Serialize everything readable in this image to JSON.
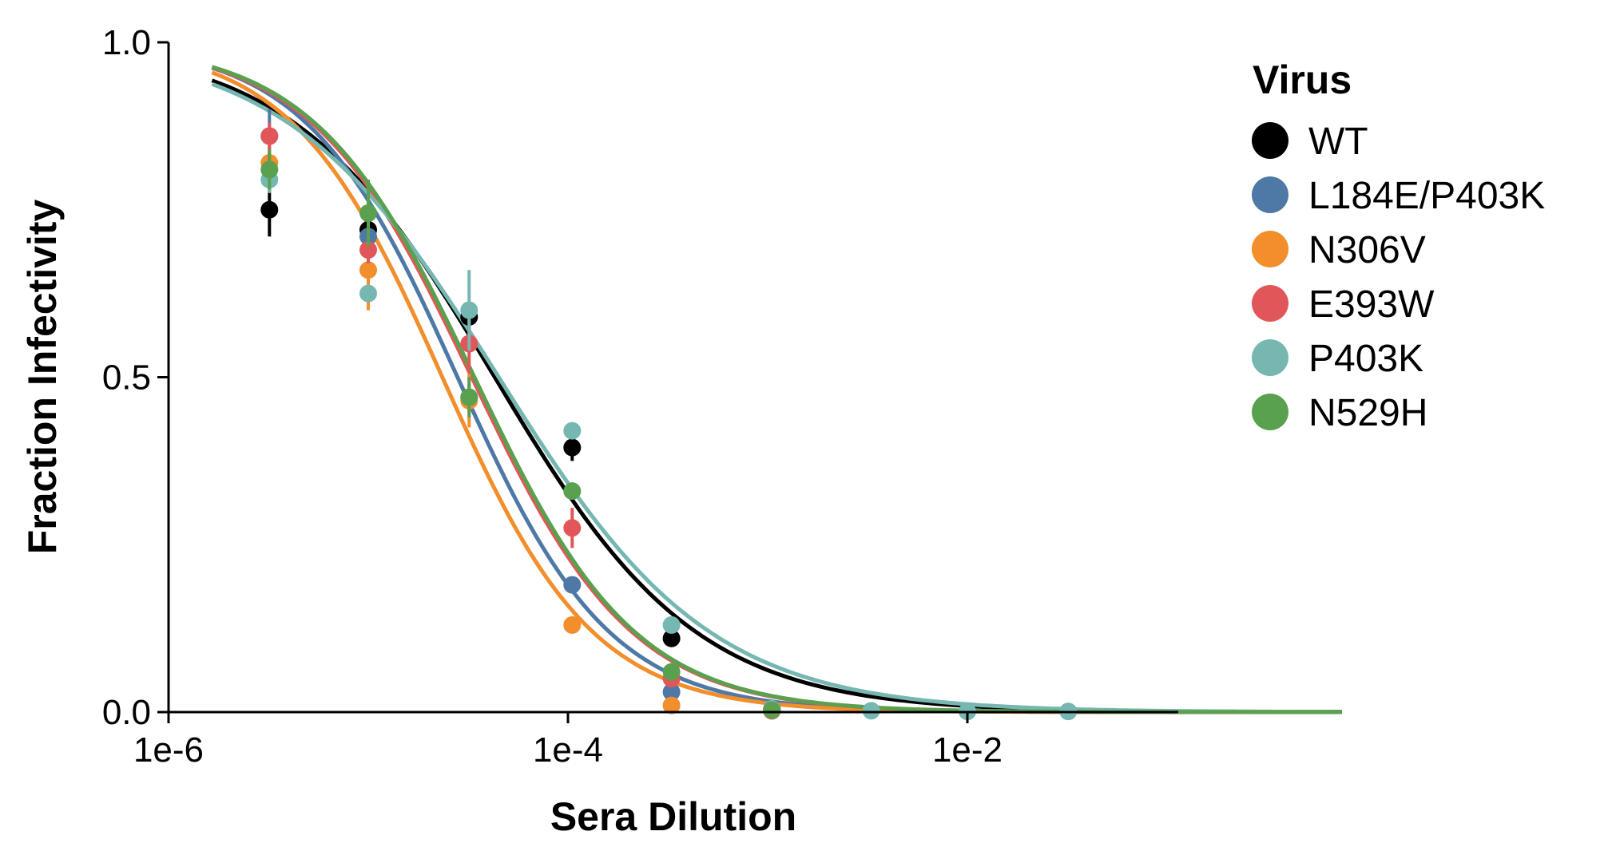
{
  "chart_data": {
    "type": "scatter",
    "title": "",
    "xlabel": "Sera Dilution",
    "ylabel": "Fraction Infectivity",
    "xscale": "log",
    "xlim": [
      1.65e-06,
      0.75
    ],
    "ylim": [
      0.0,
      1.0
    ],
    "xticks": [
      {
        "value": 1e-06,
        "label": "1e-6"
      },
      {
        "value": 0.0001,
        "label": "1e-4"
      },
      {
        "value": 0.01,
        "label": "1e-2"
      }
    ],
    "yticks": [
      {
        "value": 0.0,
        "label": "0.0"
      },
      {
        "value": 0.5,
        "label": "0.5"
      },
      {
        "value": 1.0,
        "label": "1.0"
      }
    ],
    "grid": false,
    "legend": {
      "title": "Virus",
      "position": "top-right"
    },
    "fit_curves": "Hill-curve fits per virus",
    "series": [
      {
        "name": "WT",
        "color": "#000000",
        "ic50": 4.3e-05,
        "slope": 0.86,
        "curve_start": 1.65e-06,
        "points": [
          {
            "x": 3.2e-06,
            "y": 0.75,
            "err": 0.04
          },
          {
            "x": 1e-05,
            "y": 0.72,
            "err": 0.02
          },
          {
            "x": 3.2e-05,
            "y": 0.59,
            "err": 0.02
          },
          {
            "x": 0.000105,
            "y": 0.395,
            "err": 0.02
          },
          {
            "x": 0.00033,
            "y": 0.11,
            "err": 0.01
          },
          {
            "x": 0.00105,
            "y": 0.005,
            "err": 0
          }
        ]
      },
      {
        "name": "L184E/P403K",
        "color": "#4E79A7",
        "ic50": 2.8e-05,
        "slope": 1.14,
        "curve_start": 1.65e-06,
        "points": [
          {
            "x": 3.2e-06,
            "y": 0.86,
            "err": 0.04
          },
          {
            "x": 1e-05,
            "y": 0.71,
            "err": 0.02
          },
          {
            "x": 3.2e-05,
            "y": 0.47,
            "err": 0.02
          },
          {
            "x": 0.000105,
            "y": 0.19,
            "err": 0.01
          },
          {
            "x": 0.00033,
            "y": 0.03,
            "err": 0.01
          },
          {
            "x": 0.00105,
            "y": 0.003,
            "err": 0
          }
        ]
      },
      {
        "name": "N306V",
        "color": "#F28E2B",
        "ic50": 2.35e-05,
        "slope": 1.15,
        "curve_start": 1.65e-06,
        "points": [
          {
            "x": 3.2e-06,
            "y": 0.82,
            "err": 0.03
          },
          {
            "x": 1e-05,
            "y": 0.66,
            "err": 0.06
          },
          {
            "x": 3.2e-05,
            "y": 0.465,
            "err": 0.04
          },
          {
            "x": 0.000105,
            "y": 0.13,
            "err": 0.01
          },
          {
            "x": 0.00033,
            "y": 0.01,
            "err": 0
          },
          {
            "x": 0.00105,
            "y": 0.002,
            "err": 0
          }
        ]
      },
      {
        "name": "E393W",
        "color": "#E15759",
        "ic50": 3.3e-05,
        "slope": 1.08,
        "curve_start": 1.65e-06,
        "points": [
          {
            "x": 3.2e-06,
            "y": 0.86,
            "err": 0.02
          },
          {
            "x": 1e-05,
            "y": 0.69,
            "err": 0.02
          },
          {
            "x": 3.2e-05,
            "y": 0.55,
            "err": 0.04
          },
          {
            "x": 0.000105,
            "y": 0.275,
            "err": 0.03
          },
          {
            "x": 0.00033,
            "y": 0.05,
            "err": 0.01
          },
          {
            "x": 0.00105,
            "y": 0.002,
            "err": 0
          }
        ]
      },
      {
        "name": "P403K",
        "color": "#76B7B2",
        "ic50": 4.5e-05,
        "slope": 0.82,
        "curve_start": 1.65e-06,
        "points": [
          {
            "x": 3.2e-06,
            "y": 0.795,
            "err": 0.02
          },
          {
            "x": 1e-05,
            "y": 0.625,
            "err": 0.01
          },
          {
            "x": 3.2e-05,
            "y": 0.6,
            "err": 0.06
          },
          {
            "x": 0.000105,
            "y": 0.42,
            "err": 0.01
          },
          {
            "x": 0.00033,
            "y": 0.13,
            "err": 0.01
          },
          {
            "x": 0.00105,
            "y": 0.005,
            "err": 0
          },
          {
            "x": 0.0033,
            "y": 0.002,
            "err": 0
          },
          {
            "x": 0.01,
            "y": 0.001,
            "err": 0
          },
          {
            "x": 0.032,
            "y": 0.001,
            "err": 0
          }
        ]
      },
      {
        "name": "N529H",
        "color": "#59A14F",
        "ic50": 3.4e-05,
        "slope": 1.08,
        "curve_start": 1.65e-06,
        "points": [
          {
            "x": 3.2e-06,
            "y": 0.81,
            "err": 0.03
          },
          {
            "x": 1e-05,
            "y": 0.745,
            "err": 0.05
          },
          {
            "x": 3.2e-05,
            "y": 0.47,
            "err": 0.03
          },
          {
            "x": 0.000105,
            "y": 0.33,
            "err": 0.01
          },
          {
            "x": 0.00033,
            "y": 0.06,
            "err": 0.01
          },
          {
            "x": 0.00105,
            "y": 0.003,
            "err": 0
          }
        ]
      }
    ]
  }
}
